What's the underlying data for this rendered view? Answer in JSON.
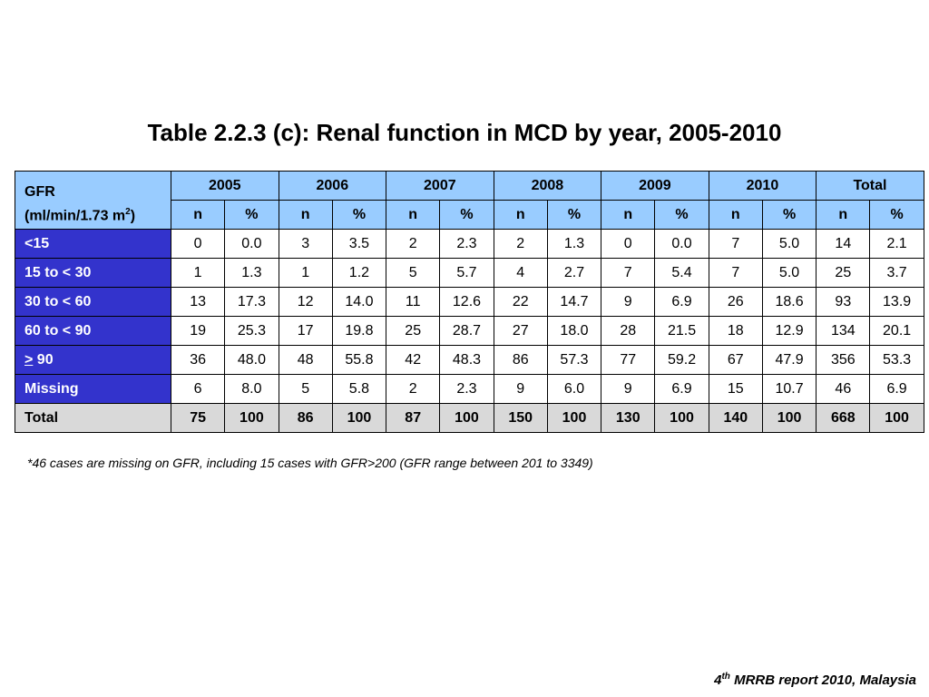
{
  "title": "Table 2.2.3 (c): Renal function in MCD by year, 2005-2010",
  "header": {
    "gfr_line1": "GFR",
    "gfr_line2": "(ml/min/1.73 m",
    "gfr_sup": "2",
    "gfr_close": ")",
    "years": [
      "2005",
      "2006",
      "2007",
      "2008",
      "2009",
      "2010",
      "Total"
    ],
    "n_label": "n",
    "pct_label": "%"
  },
  "rows": [
    {
      "label": "<15",
      "values": [
        "0",
        "0.0",
        "3",
        "3.5",
        "2",
        "2.3",
        "2",
        "1.3",
        "0",
        "0.0",
        "7",
        "5.0",
        "14",
        "2.1"
      ]
    },
    {
      "label": "15 to < 30",
      "values": [
        "1",
        "1.3",
        "1",
        "1.2",
        "5",
        "5.7",
        "4",
        "2.7",
        "7",
        "5.4",
        "7",
        "5.0",
        "25",
        "3.7"
      ]
    },
    {
      "label": "30 to < 60",
      "values": [
        "13",
        "17.3",
        "12",
        "14.0",
        "11",
        "12.6",
        "22",
        "14.7",
        "9",
        "6.9",
        "26",
        "18.6",
        "93",
        "13.9"
      ]
    },
    {
      "label": "60 to < 90",
      "values": [
        "19",
        "25.3",
        "17",
        "19.8",
        "25",
        "28.7",
        "27",
        "18.0",
        "28",
        "21.5",
        "18",
        "12.9",
        "134",
        "20.1"
      ]
    },
    {
      "label_sym": ">",
      "label_rest": " 90",
      "values": [
        "36",
        "48.0",
        "48",
        "55.8",
        "42",
        "48.3",
        "86",
        "57.3",
        "77",
        "59.2",
        "67",
        "47.9",
        "356",
        "53.3"
      ]
    },
    {
      "label": "Missing",
      "values": [
        "6",
        "8.0",
        "5",
        "5.8",
        "2",
        "2.3",
        "9",
        "6.0",
        "9",
        "6.9",
        "15",
        "10.7",
        "46",
        "6.9"
      ]
    }
  ],
  "total": {
    "label": "Total",
    "values": [
      "75",
      "100",
      "86",
      "100",
      "87",
      "100",
      "150",
      "100",
      "130",
      "100",
      "140",
      "100",
      "668",
      "100"
    ]
  },
  "footnote": "*46 cases are missing on GFR, including 15 cases with GFR>200 (GFR range between 201 to 3349)",
  "source": {
    "num": "4",
    "sup": "th",
    "rest": " MRRB report 2010, Malaysia"
  },
  "colors": {
    "header_bg": "#99ccff",
    "label_bg": "#3333cc",
    "total_bg": "#d9d9d9"
  }
}
